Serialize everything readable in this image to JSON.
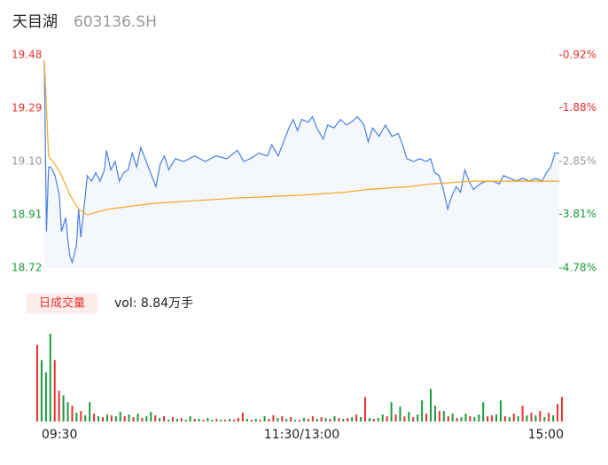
{
  "header": {
    "name": "天目湖",
    "code": "603136.SH"
  },
  "chart_data": [
    {
      "type": "line",
      "xlim": [
        0,
        240
      ],
      "xticks": [
        {
          "value": 0,
          "label": "09:30"
        },
        {
          "value": 120,
          "label": "11:30/13:00"
        },
        {
          "value": 240,
          "label": "15:00"
        }
      ],
      "ylim": [
        18.72,
        19.48
      ],
      "yticks": [
        19.48,
        19.29,
        {
          "value": 19.1,
          "label": "19.10"
        },
        18.91,
        18.72
      ],
      "y2lim": [
        -4.78,
        -0.92
      ],
      "y2ticks": [
        {
          "value": -0.92,
          "label": "-0.92%"
        },
        {
          "value": -1.88,
          "label": "-1.88%"
        },
        {
          "value": -2.85,
          "label": "-2.85%"
        },
        {
          "value": -3.81,
          "label": "-3.81%"
        },
        {
          "value": -4.78,
          "label": "-4.78%"
        }
      ],
      "up_color": "#e8322f",
      "down_color": "#1a9b3c",
      "flat_color": "#999999",
      "area_color": "#f4f7fc",
      "series": [
        {
          "color": "#4a7fe0",
          "x": [
            0,
            1,
            2,
            3,
            5,
            7,
            8,
            10,
            11,
            12,
            13,
            15,
            16,
            17,
            19,
            20,
            22,
            24,
            26,
            28,
            29,
            31,
            33,
            35,
            37,
            39,
            41,
            43,
            45,
            48,
            52,
            54,
            56,
            58,
            61,
            65,
            70,
            75,
            80,
            85,
            90,
            93,
            96,
            100,
            104,
            106,
            109,
            112,
            114,
            116,
            118,
            120,
            123,
            125,
            127,
            130,
            132,
            135,
            138,
            141,
            143,
            146,
            149,
            151,
            153,
            156,
            159,
            162,
            165,
            167,
            169,
            172,
            175,
            178,
            180,
            182,
            184,
            186,
            188,
            190,
            192,
            194,
            196,
            198,
            200,
            203,
            206,
            209,
            212,
            214,
            217,
            220,
            223,
            226,
            229,
            232,
            234,
            236,
            238,
            240
          ],
          "values": [
            19.46,
            18.85,
            19.08,
            19.08,
            19.05,
            18.98,
            18.85,
            18.9,
            18.82,
            18.76,
            18.74,
            18.8,
            18.93,
            18.83,
            18.97,
            19.05,
            19.03,
            19.06,
            19.03,
            19.07,
            19.14,
            19.07,
            19.1,
            19.03,
            19.06,
            19.07,
            19.13,
            19.08,
            19.15,
            19.09,
            19.01,
            19.09,
            19.12,
            19.07,
            19.11,
            19.1,
            19.12,
            19.1,
            19.12,
            19.11,
            19.14,
            19.1,
            19.11,
            19.13,
            19.12,
            19.16,
            19.12,
            19.18,
            19.22,
            19.25,
            19.21,
            19.25,
            19.24,
            19.26,
            19.22,
            19.18,
            19.23,
            19.22,
            19.25,
            19.23,
            19.24,
            19.26,
            19.23,
            19.17,
            19.22,
            19.19,
            19.23,
            19.19,
            19.2,
            19.16,
            19.11,
            19.1,
            19.11,
            19.1,
            19.11,
            19.06,
            19.05,
            19.0,
            18.93,
            18.98,
            19.01,
            18.99,
            19.07,
            19.03,
            19.0,
            19.02,
            19.03,
            19.03,
            19.02,
            19.05,
            19.04,
            19.03,
            19.04,
            19.03,
            19.04,
            19.03,
            19.06,
            19.08,
            19.13,
            19.13
          ]
        },
        {
          "color": "#f5a623",
          "x": [
            0,
            2,
            5,
            8,
            12,
            16,
            20,
            25,
            30,
            40,
            50,
            70,
            90,
            120,
            140,
            150,
            170,
            180,
            200,
            240
          ],
          "values": [
            19.46,
            19.12,
            19.09,
            19.05,
            18.98,
            18.93,
            18.91,
            18.92,
            18.93,
            18.94,
            18.95,
            18.96,
            18.97,
            18.98,
            18.99,
            19.0,
            19.01,
            19.02,
            19.03,
            19.03
          ]
        }
      ]
    },
    {
      "type": "bar",
      "legend": "日成交量",
      "label": "vol: 8.84万手",
      "xlim": [
        0,
        240
      ],
      "ylim": [
        0,
        1000
      ],
      "x": [
        0,
        2,
        4,
        6,
        8,
        10,
        12,
        14,
        16,
        18,
        20,
        22,
        24,
        26,
        28,
        30,
        32,
        34,
        36,
        38,
        40,
        42,
        44,
        46,
        48,
        50,
        52,
        54,
        56,
        58,
        60,
        62,
        64,
        66,
        68,
        70,
        72,
        74,
        76,
        78,
        80,
        82,
        84,
        86,
        88,
        90,
        92,
        94,
        96,
        98,
        100,
        102,
        104,
        106,
        108,
        110,
        112,
        114,
        116,
        118,
        120,
        122,
        124,
        126,
        128,
        130,
        132,
        134,
        136,
        138,
        140,
        142,
        144,
        146,
        148,
        150,
        152,
        154,
        156,
        158,
        160,
        162,
        164,
        166,
        168,
        170,
        172,
        174,
        176,
        178,
        180,
        182,
        184,
        186,
        188,
        190,
        192,
        194,
        196,
        198,
        200,
        202,
        204,
        206,
        208,
        210,
        212,
        214,
        216,
        218,
        220,
        222,
        224,
        226,
        228,
        230,
        232,
        234,
        236,
        238,
        240
      ],
      "values": [
        870,
        700,
        560,
        1000,
        700,
        350,
        300,
        220,
        180,
        100,
        120,
        70,
        220,
        90,
        60,
        50,
        80,
        70,
        60,
        110,
        60,
        80,
        50,
        90,
        40,
        60,
        110,
        70,
        40,
        60,
        20,
        50,
        30,
        40,
        20,
        60,
        30,
        30,
        20,
        40,
        20,
        30,
        20,
        20,
        30,
        20,
        40,
        100,
        30,
        20,
        30,
        20,
        60,
        30,
        70,
        40,
        60,
        30,
        50,
        20,
        20,
        40,
        30,
        60,
        30,
        50,
        40,
        30,
        60,
        40,
        30,
        40,
        50,
        80,
        50,
        280,
        40,
        30,
        40,
        80,
        60,
        220,
        80,
        170,
        60,
        110,
        50,
        80,
        240,
        90,
        370,
        180,
        120,
        120,
        60,
        90,
        40,
        50,
        90,
        60,
        50,
        80,
        220,
        60,
        70,
        80,
        240,
        60,
        50,
        90,
        60,
        180,
        70,
        100,
        70,
        120,
        50,
        100,
        70,
        200,
        280
      ],
      "colors": [
        "#e8322f",
        "#1a9b3c",
        "#1a9b3c",
        "#1a9b3c",
        "#e8322f",
        "#e8322f",
        "#1a9b3c",
        "#1a9b3c",
        "#e8322f",
        "#1a9b3c",
        "#e8322f",
        "#1a9b3c",
        "#1a9b3c",
        "#e8322f",
        "#1a9b3c",
        "#e8322f",
        "#1a9b3c",
        "#e8322f",
        "#1a9b3c",
        "#1a9b3c",
        "#e8322f",
        "#1a9b3c",
        "#e8322f",
        "#1a9b3c",
        "#e8322f",
        "#1a9b3c",
        "#1a9b3c",
        "#e8322f",
        "#1a9b3c",
        "#e8322f",
        "#1a9b3c",
        "#e8322f",
        "#1a9b3c",
        "#e8322f",
        "#1a9b3c",
        "#1a9b3c",
        "#e8322f",
        "#1a9b3c",
        "#e8322f",
        "#1a9b3c",
        "#1a9b3c",
        "#e8322f",
        "#1a9b3c",
        "#e8322f",
        "#1a9b3c",
        "#e8322f",
        "#e8322f",
        "#e8322f",
        "#1a9b3c",
        "#e8322f",
        "#1a9b3c",
        "#e8322f",
        "#1a9b3c",
        "#e8322f",
        "#e8322f",
        "#1a9b3c",
        "#e8322f",
        "#1a9b3c",
        "#e8322f",
        "#1a9b3c",
        "#e8322f",
        "#1a9b3c",
        "#e8322f",
        "#e8322f",
        "#1a9b3c",
        "#e8322f",
        "#1a9b3c",
        "#e8322f",
        "#1a9b3c",
        "#e8322f",
        "#1a9b3c",
        "#e8322f",
        "#1a9b3c",
        "#e8322f",
        "#1a9b3c",
        "#e8322f",
        "#1a9b3c",
        "#e8322f",
        "#1a9b3c",
        "#1a9b3c",
        "#e8322f",
        "#1a9b3c",
        "#e8322f",
        "#1a9b3c",
        "#e8322f",
        "#1a9b3c",
        "#e8322f",
        "#1a9b3c",
        "#1a9b3c",
        "#e8322f",
        "#1a9b3c",
        "#1a9b3c",
        "#e8322f",
        "#1a9b3c",
        "#e8322f",
        "#1a9b3c",
        "#e8322f",
        "#1a9b3c",
        "#1a9b3c",
        "#e8322f",
        "#1a9b3c",
        "#1a9b3c",
        "#1a9b3c",
        "#e8322f",
        "#e8322f",
        "#1a9b3c",
        "#1a9b3c",
        "#e8322f",
        "#1a9b3c",
        "#e8322f",
        "#1a9b3c",
        "#e8322f",
        "#1a9b3c",
        "#e8322f",
        "#1a9b3c",
        "#e8322f",
        "#1a9b3c",
        "#e8322f",
        "#1a9b3c",
        "#e8322f",
        "#e8322f"
      ]
    }
  ]
}
